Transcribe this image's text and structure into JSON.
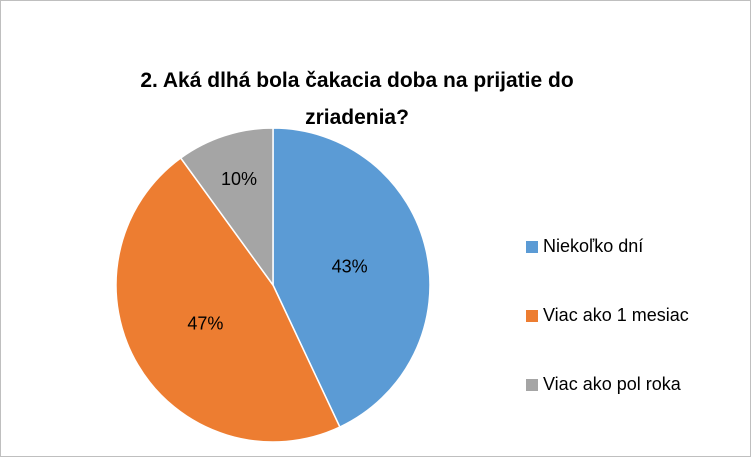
{
  "chart_data": {
    "type": "pie",
    "title": "2. Aká dlhá bola čakacia doba na prijatie do zriadenia?",
    "categories": [
      "Niekoľko dní",
      "Viac ako 1 mesiac",
      "Viac ako pol roka"
    ],
    "values": [
      43,
      47,
      10
    ],
    "value_labels": [
      "43%",
      "47%",
      "10%"
    ],
    "colors": [
      "#5b9bd5",
      "#ed7d31",
      "#a5a5a5"
    ],
    "legend": "right"
  }
}
